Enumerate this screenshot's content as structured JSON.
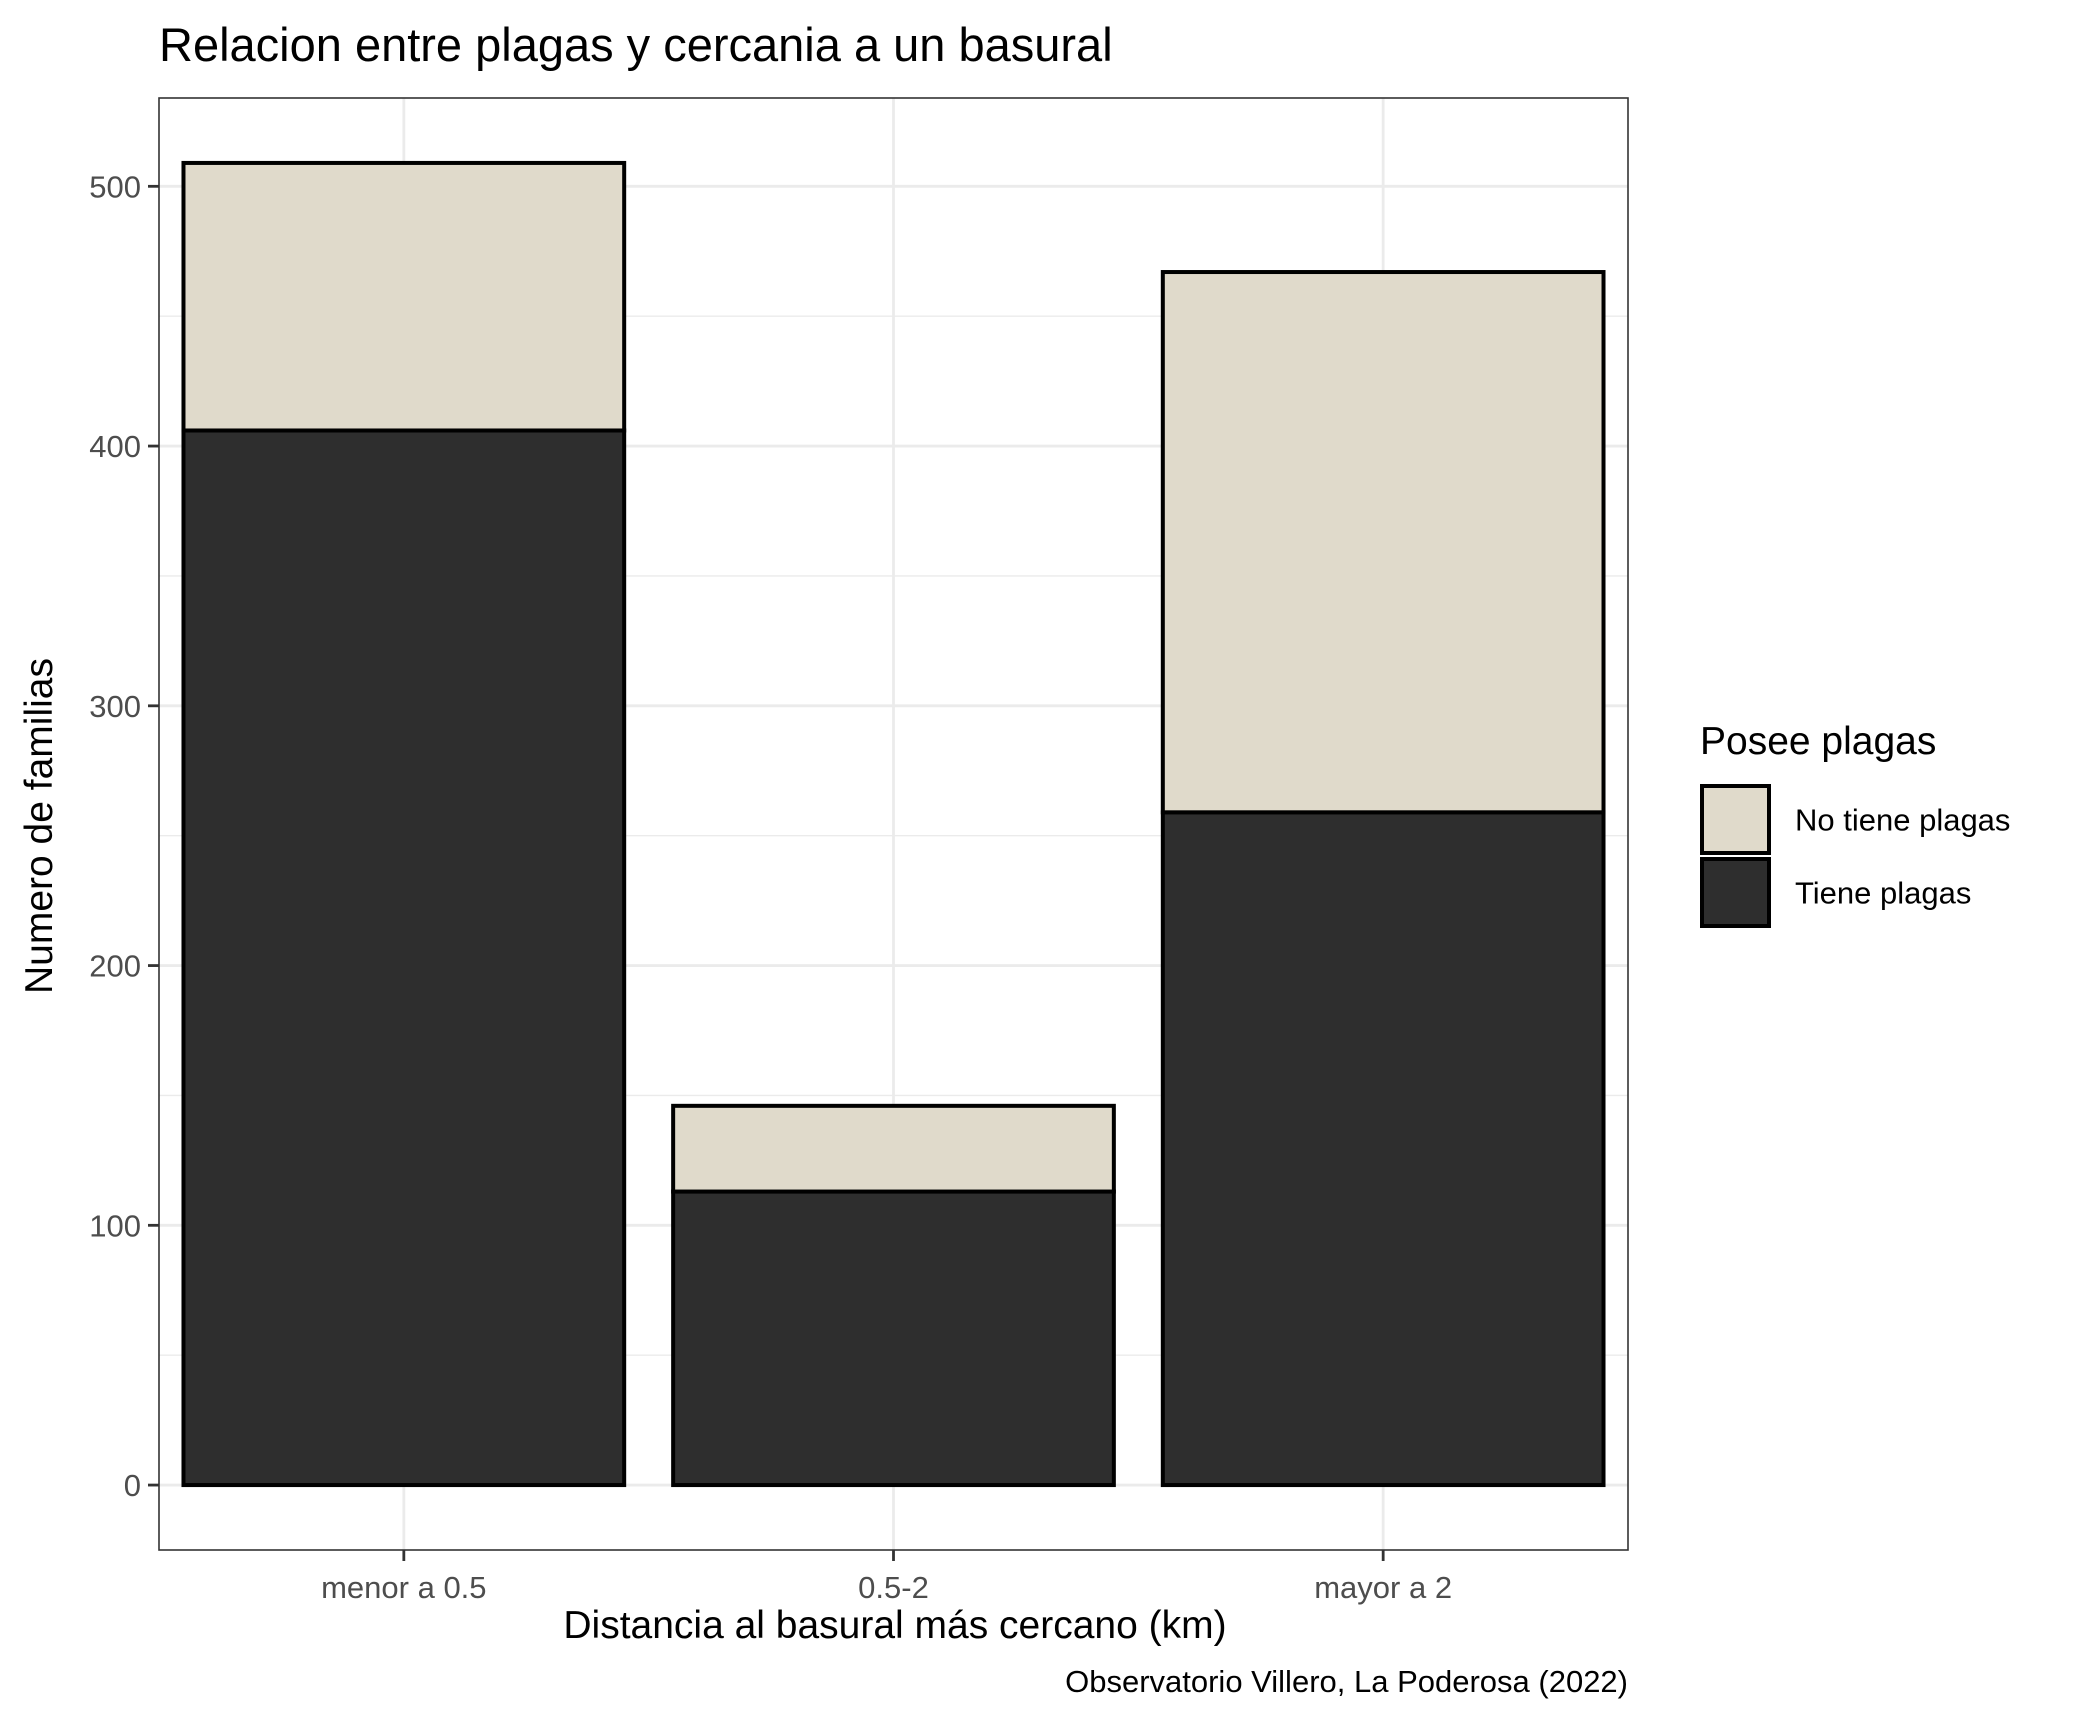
{
  "chart_data": {
    "type": "bar",
    "stacked": true,
    "title": "Relacion entre plagas y cercania a un basural",
    "xlabel": "Distancia al basural más cercano (km)",
    "ylabel": "Numero de familias",
    "caption": "Observatorio Villero, La Poderosa (2022)",
    "categories": [
      "menor a 0.5",
      "0.5-2",
      "mayor a 2"
    ],
    "series": [
      {
        "name": "Tiene plagas",
        "color": "#2e2e2e",
        "values": [
          406,
          113,
          259
        ]
      },
      {
        "name": "No tiene plagas",
        "color": "#e0dacb",
        "values": [
          103,
          33,
          208
        ]
      }
    ],
    "ylim": [
      -25,
      534
    ],
    "yticks": [
      0,
      100,
      200,
      300,
      400,
      500
    ],
    "grid": true,
    "legend": {
      "title": "Posee plagas",
      "position": "right",
      "items": [
        {
          "label": "No tiene plagas",
          "color": "#e0dacb"
        },
        {
          "label": "Tiene plagas",
          "color": "#2e2e2e"
        }
      ]
    }
  }
}
